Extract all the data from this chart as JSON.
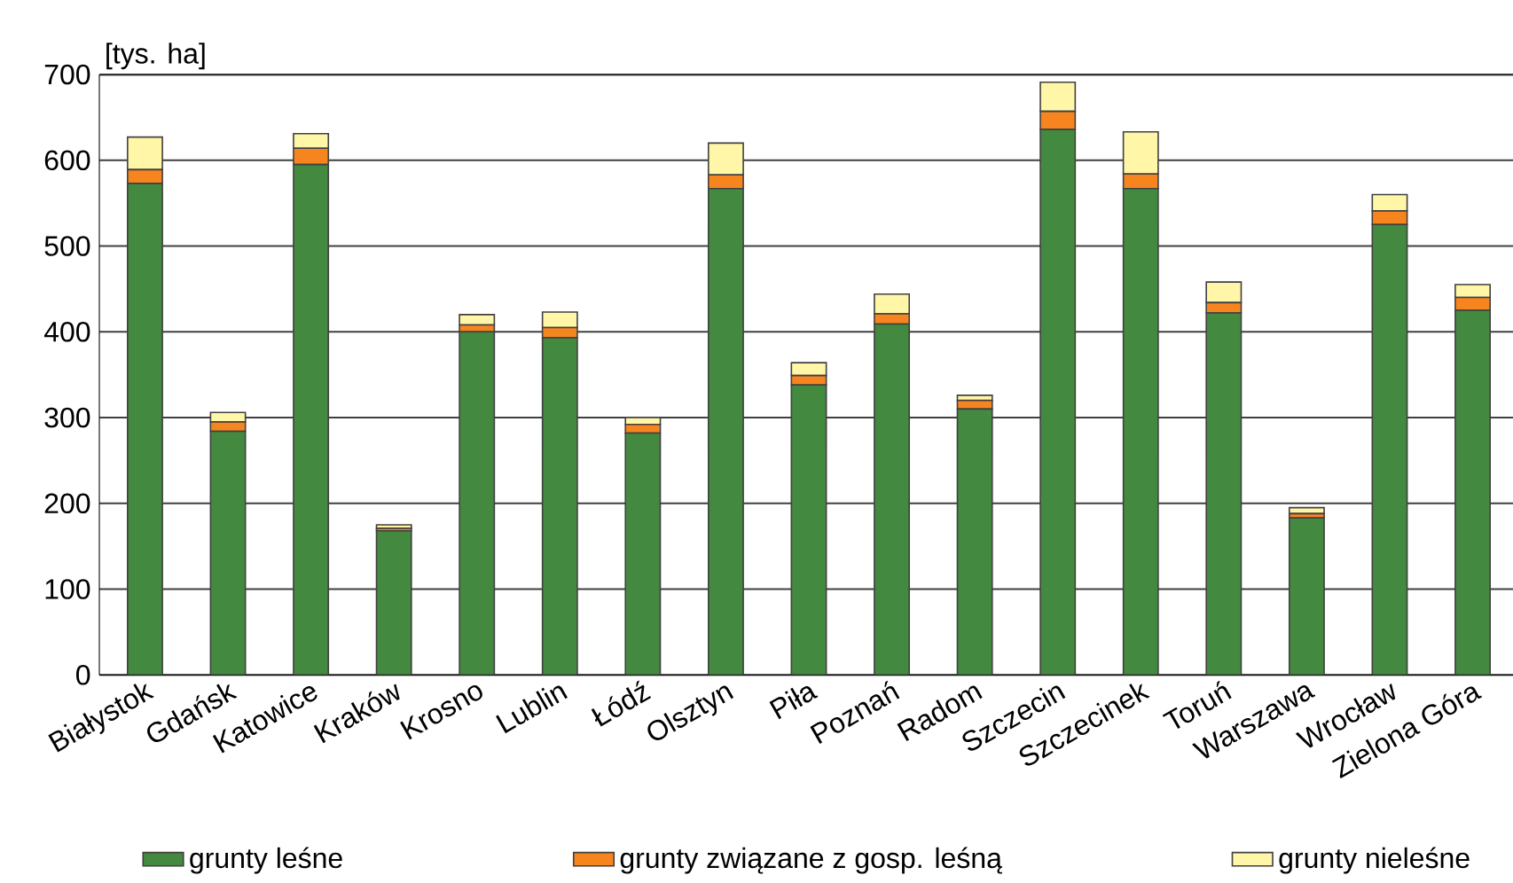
{
  "chart_data": {
    "type": "bar",
    "stacked": true,
    "ylabel": "[tys. ha]",
    "categories": [
      "Białystok",
      "Gdańsk",
      "Katowice",
      "Kraków",
      "Krosno",
      "Lublin",
      "Łódź",
      "Olsztyn",
      "Piła",
      "Poznań",
      "Radom",
      "Szczecin",
      "Szczecinek",
      "Toruń",
      "Warszawa",
      "Wrocław",
      "Zielona Góra"
    ],
    "series": [
      {
        "name": "grunty leśne",
        "color": "#43893f",
        "values": [
          573,
          284,
          595,
          168,
          400,
          393,
          282,
          567,
          338,
          409,
          310,
          636,
          567,
          422,
          183,
          525,
          425
        ]
      },
      {
        "name": "grunty związane z gosp. leśną",
        "color": "#f7851f",
        "values": [
          16,
          11,
          19,
          3,
          8,
          12,
          10,
          16,
          11,
          12,
          10,
          21,
          17,
          12,
          5,
          16,
          15
        ]
      },
      {
        "name": "grunty nieleśne",
        "color": "#fff6a8",
        "values": [
          38,
          11,
          17,
          4,
          12,
          18,
          8,
          37,
          15,
          23,
          6,
          34,
          49,
          24,
          7,
          19,
          15
        ]
      }
    ],
    "ylim": [
      0,
      700
    ],
    "yticks": [
      0,
      100,
      200,
      300,
      400,
      500,
      600,
      700
    ],
    "grid": "y",
    "legend": "bottom"
  }
}
